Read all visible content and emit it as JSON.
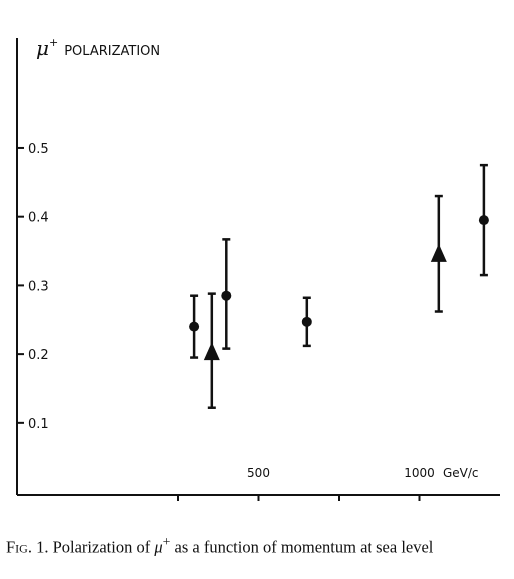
{
  "chart_data": {
    "type": "scatter",
    "ylabel": {
      "symbol": "μ",
      "superscript": "+",
      "text": "POLARIZATION"
    },
    "xlabel": "",
    "x_unit_label": "GeV/c",
    "x_tick_labels": [
      {
        "value": 500,
        "label": "500"
      },
      {
        "value": 1000,
        "label": "1000"
      }
    ],
    "x_minor_ticks": [
      250,
      750
    ],
    "xlim": [
      -250,
      1250
    ],
    "y_tick_labels": [
      {
        "value": 0.1,
        "label": "0.1"
      },
      {
        "value": 0.2,
        "label": "0.2"
      },
      {
        "value": 0.3,
        "label": "0.3"
      },
      {
        "value": 0.4,
        "label": "0.4"
      },
      {
        "value": 0.5,
        "label": "0.5"
      }
    ],
    "ylim": [
      -0.005,
      0.66
    ],
    "grid": false,
    "series": [
      {
        "marker": "circle",
        "points": [
          {
            "x": 300,
            "y": 0.24,
            "yerr_low": 0.195,
            "yerr_high": 0.285
          },
          {
            "x": 400,
            "y": 0.285,
            "yerr_low": 0.208,
            "yerr_high": 0.367
          },
          {
            "x": 650,
            "y": 0.247,
            "yerr_low": 0.212,
            "yerr_high": 0.282
          },
          {
            "x": 1200,
            "y": 0.395,
            "yerr_low": 0.315,
            "yerr_high": 0.475
          }
        ]
      },
      {
        "marker": "triangle",
        "points": [
          {
            "x": 355,
            "y": 0.2,
            "yerr_low": 0.122,
            "yerr_high": 0.288
          },
          {
            "x": 1060,
            "y": 0.343,
            "yerr_low": 0.262,
            "yerr_high": 0.43
          }
        ]
      }
    ]
  },
  "caption": {
    "prefix": "Fig. 1.",
    "text_part1": "Polarization of",
    "symbol": "μ",
    "superscript": "+",
    "text_part2": "as a function of momentum at sea level"
  }
}
